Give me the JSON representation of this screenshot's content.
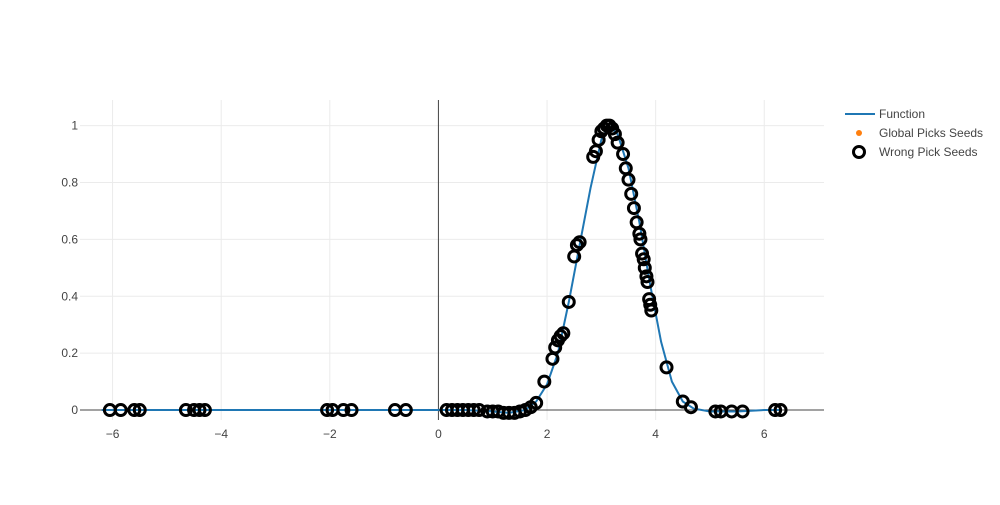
{
  "chart_data": {
    "type": "scatter",
    "xlim": [
      -6.6,
      7.1
    ],
    "ylim": [
      -0.035,
      1.09
    ],
    "x_ticks": [
      -6,
      -4,
      -2,
      0,
      2,
      4,
      6
    ],
    "y_ticks": [
      0,
      0.2,
      0.4,
      0.6,
      0.8,
      1
    ],
    "x_tick_labels": [
      "−6",
      "−4",
      "−2",
      "0",
      "2",
      "4",
      "6"
    ],
    "y_tick_labels": [
      "0",
      "0.2",
      "0.4",
      "0.6",
      "0.8",
      "1"
    ],
    "grid": true,
    "legend_position": "top-right",
    "series": [
      {
        "name": "Function",
        "kind": "line",
        "color": "#1f77b4",
        "x": [
          -6.2,
          -5,
          -4,
          -3,
          -2,
          -1,
          0,
          0.5,
          1.0,
          1.3,
          1.6,
          1.8,
          2.0,
          2.2,
          2.4,
          2.6,
          2.8,
          3.0,
          3.14,
          3.3,
          3.5,
          3.7,
          3.9,
          4.1,
          4.3,
          4.5,
          4.7,
          5.0,
          5.5,
          6.0,
          6.3
        ],
        "y": [
          0,
          0,
          0,
          0,
          0,
          0,
          0,
          0,
          -0.005,
          -0.01,
          0,
          0.03,
          0.09,
          0.2,
          0.38,
          0.58,
          0.78,
          0.95,
          1.0,
          0.97,
          0.85,
          0.66,
          0.44,
          0.24,
          0.1,
          0.03,
          0.005,
          -0.005,
          -0.005,
          0,
          0
        ]
      },
      {
        "name": "Global Picks Seeds",
        "kind": "markers",
        "color": "#ff7f0e",
        "x": [],
        "y": []
      },
      {
        "name": "Wrong Pick Seeds",
        "kind": "open-markers",
        "color": "#000000",
        "x": [
          -6.05,
          -5.85,
          -5.6,
          -5.5,
          -4.65,
          -4.5,
          -4.4,
          -4.3,
          -2.05,
          -1.95,
          -1.75,
          -1.6,
          -0.8,
          -0.6,
          0.15,
          0.25,
          0.35,
          0.45,
          0.55,
          0.65,
          0.75,
          0.9,
          1.0,
          1.1,
          1.2,
          1.3,
          1.4,
          1.5,
          1.6,
          1.7,
          1.8,
          1.95,
          2.1,
          2.15,
          2.2,
          2.25,
          2.3,
          2.4,
          2.5,
          2.55,
          2.6,
          2.85,
          2.9,
          2.95,
          3.0,
          3.05,
          3.1,
          3.15,
          3.2,
          3.25,
          3.3,
          3.4,
          3.45,
          3.5,
          3.55,
          3.6,
          3.65,
          3.7,
          3.72,
          3.75,
          3.78,
          3.8,
          3.83,
          3.85,
          3.88,
          3.9,
          3.92,
          4.2,
          4.5,
          4.65,
          5.1,
          5.2,
          5.4,
          5.6,
          6.2,
          6.3
        ],
        "y": [
          0,
          0,
          0,
          0,
          0,
          0,
          0,
          0,
          0,
          0,
          0,
          0,
          0,
          0,
          0,
          0,
          0,
          0,
          0,
          0,
          0,
          -0.005,
          -0.005,
          -0.005,
          -0.01,
          -0.01,
          -0.01,
          -0.005,
          0,
          0.01,
          0.025,
          0.1,
          0.18,
          0.22,
          0.245,
          0.26,
          0.27,
          0.38,
          0.54,
          0.58,
          0.59,
          0.89,
          0.91,
          0.95,
          0.98,
          0.99,
          1.0,
          1.0,
          0.99,
          0.97,
          0.94,
          0.9,
          0.85,
          0.81,
          0.76,
          0.71,
          0.66,
          0.62,
          0.6,
          0.55,
          0.53,
          0.5,
          0.47,
          0.45,
          0.39,
          0.37,
          0.35,
          0.15,
          0.03,
          0.01,
          -0.005,
          -0.005,
          -0.005,
          -0.005,
          0,
          0
        ]
      }
    ]
  }
}
